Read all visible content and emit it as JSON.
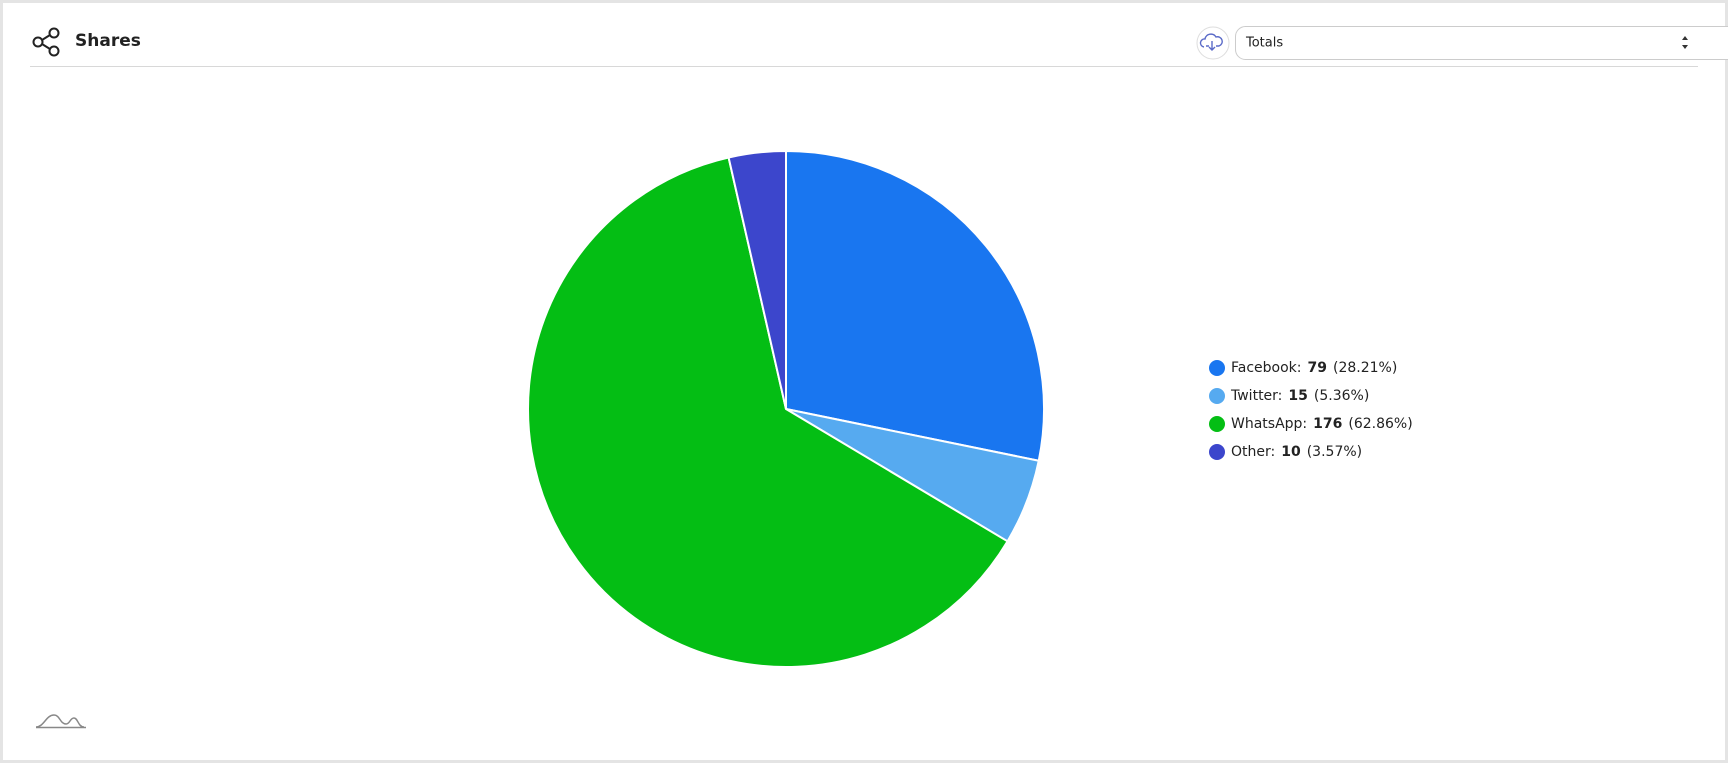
{
  "chart_data": {
    "type": "pie",
    "title": "Shares",
    "categories": [
      "Facebook:",
      "Twitter:",
      "WhatsApp:",
      "Other:"
    ],
    "values": [
      79,
      15,
      176,
      10
    ],
    "percent_labels": [
      "(28.21%)",
      "(5.36%)",
      "(62.86%)",
      "(3.57%)"
    ],
    "colors": [
      "#1976f0",
      "#56aaf0",
      "#04be14",
      "#3c46cc"
    ],
    "legend": "right"
  },
  "controls": {
    "period_select": "Totals"
  }
}
